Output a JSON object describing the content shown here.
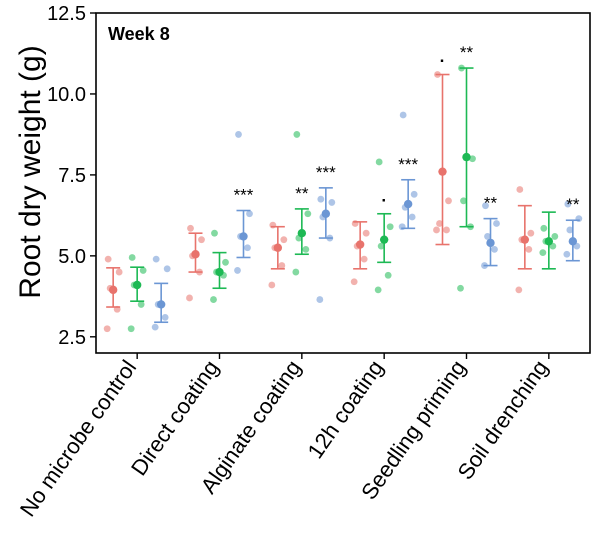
{
  "chart_data": {
    "type": "scatter",
    "panel_label": "Week 8",
    "xlabel": "",
    "ylabel": "Root dry weight (g)",
    "ylim": [
      2.0,
      12.5
    ],
    "yticks": [
      "2.5",
      "5.0",
      "7.5",
      "10.0",
      "12.5"
    ],
    "categories": [
      "No microbe control",
      "Direct coating",
      "Alginate coating",
      "12h coating",
      "Seedling priming",
      "Soil drenching"
    ],
    "series": [
      {
        "color": "#e8736c",
        "groups": [
          {
            "mean": 3.95,
            "lower": 3.42,
            "upper": 4.63,
            "points": [
              2.75,
              3.35,
              4.0,
              4.5,
              4.9
            ],
            "sig": ""
          },
          {
            "mean": 5.05,
            "lower": 4.5,
            "upper": 5.7,
            "points": [
              3.7,
              4.5,
              5.0,
              5.5,
              5.85
            ],
            "sig": ""
          },
          {
            "mean": 5.25,
            "lower": 4.6,
            "upper": 5.9,
            "points": [
              4.1,
              4.7,
              5.25,
              5.5,
              5.95
            ],
            "sig": ""
          },
          {
            "mean": 5.35,
            "lower": 4.6,
            "upper": 6.05,
            "points": [
              4.2,
              4.9,
              5.3,
              5.7,
              6.0
            ],
            "sig": ""
          },
          {
            "mean": 7.6,
            "lower": 5.35,
            "upper": 10.6,
            "points": [
              5.8,
              5.8,
              6.0,
              6.7,
              10.6
            ],
            "sig": "·"
          },
          {
            "mean": 5.5,
            "lower": 4.6,
            "upper": 6.55,
            "points": [
              3.95,
              5.2,
              5.5,
              5.7,
              7.05
            ],
            "sig": ""
          }
        ]
      },
      {
        "color": "#1db954",
        "groups": [
          {
            "mean": 4.1,
            "lower": 3.6,
            "upper": 4.65,
            "points": [
              2.75,
              3.5,
              4.1,
              4.55,
              4.95
            ],
            "sig": ""
          },
          {
            "mean": 4.5,
            "lower": 4.0,
            "upper": 5.1,
            "points": [
              3.65,
              4.4,
              4.5,
              4.8,
              5.7
            ],
            "sig": ""
          },
          {
            "mean": 5.7,
            "lower": 5.05,
            "upper": 6.45,
            "points": [
              4.5,
              5.2,
              5.55,
              6.3,
              8.75
            ],
            "sig": "**"
          },
          {
            "mean": 5.5,
            "lower": 4.8,
            "upper": 6.3,
            "points": [
              3.95,
              4.4,
              5.3,
              5.9,
              7.9
            ],
            "sig": "·"
          },
          {
            "mean": 8.05,
            "lower": 5.9,
            "upper": 10.8,
            "points": [
              4.0,
              5.9,
              6.7,
              8.0,
              10.8
            ],
            "sig": "**"
          },
          {
            "mean": 5.45,
            "lower": 4.6,
            "upper": 6.35,
            "points": [
              5.1,
              5.3,
              5.45,
              5.6,
              5.85
            ],
            "sig": ""
          }
        ]
      },
      {
        "color": "#6b96d4",
        "groups": [
          {
            "mean": 3.5,
            "lower": 2.95,
            "upper": 4.15,
            "points": [
              2.8,
              3.1,
              3.5,
              4.6,
              4.9
            ],
            "sig": ""
          },
          {
            "mean": 5.6,
            "lower": 4.95,
            "upper": 6.4,
            "points": [
              4.55,
              5.25,
              5.6,
              6.3,
              8.75
            ],
            "sig": "***"
          },
          {
            "mean": 6.3,
            "lower": 5.55,
            "upper": 7.1,
            "points": [
              3.65,
              5.55,
              6.2,
              6.65,
              6.75
            ],
            "sig": "***"
          },
          {
            "mean": 6.6,
            "lower": 5.85,
            "upper": 7.35,
            "points": [
              5.9,
              6.2,
              6.5,
              6.9,
              9.35
            ],
            "sig": "***"
          },
          {
            "mean": 5.4,
            "lower": 4.7,
            "upper": 6.15,
            "points": [
              4.7,
              5.2,
              5.6,
              6.0,
              6.55
            ],
            "sig": "**"
          },
          {
            "mean": 5.45,
            "lower": 4.85,
            "upper": 6.1,
            "points": [
              5.05,
              5.3,
              5.8,
              6.15,
              6.6
            ],
            "sig": "**"
          }
        ]
      }
    ]
  }
}
